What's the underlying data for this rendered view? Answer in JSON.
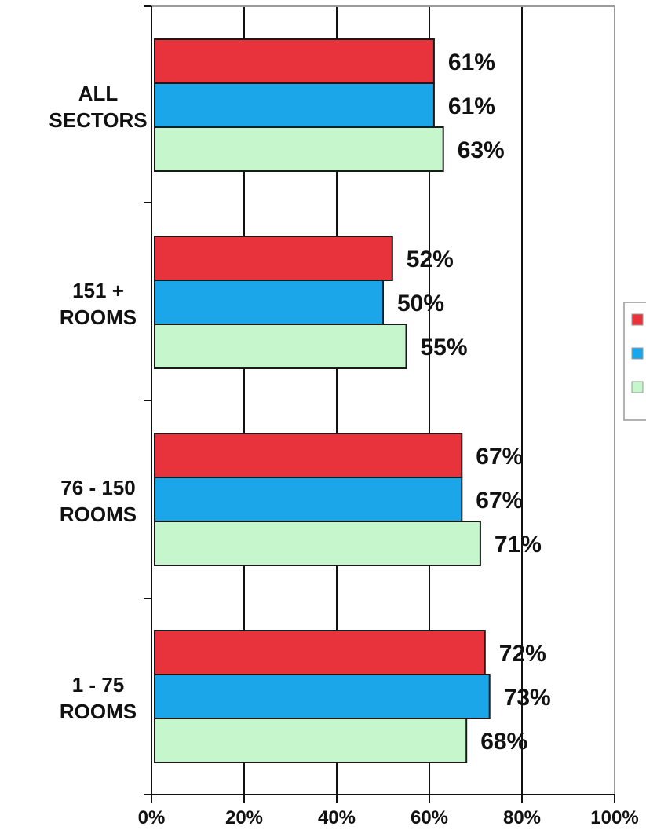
{
  "chart_data": {
    "type": "bar",
    "orientation": "horizontal",
    "categories": [
      [
        "ALL",
        "SECTORS"
      ],
      [
        "151 +",
        "ROOMS"
      ],
      [
        "76 - 150",
        "ROOMS"
      ],
      [
        "1 - 75",
        "ROOMS"
      ]
    ],
    "series": [
      {
        "color": "#e8323c",
        "values": [
          61,
          52,
          67,
          72
        ]
      },
      {
        "color": "#1aa6e8",
        "values": [
          61,
          50,
          67,
          73
        ]
      },
      {
        "color": "#c6f7cc",
        "values": [
          63,
          55,
          71,
          68
        ]
      }
    ],
    "data_labels": [
      [
        "61%",
        "61%",
        "63%"
      ],
      [
        "52%",
        "50%",
        "55%"
      ],
      [
        "67%",
        "67%",
        "71%"
      ],
      [
        "72%",
        "73%",
        "68%"
      ]
    ],
    "x_ticks": [
      "0%",
      "20%",
      "40%",
      "60%",
      "80%",
      "100%"
    ],
    "xlim": [
      0,
      100
    ],
    "grid": true,
    "legend": {
      "placement": "right",
      "entries": [
        "",
        "",
        ""
      ]
    }
  }
}
